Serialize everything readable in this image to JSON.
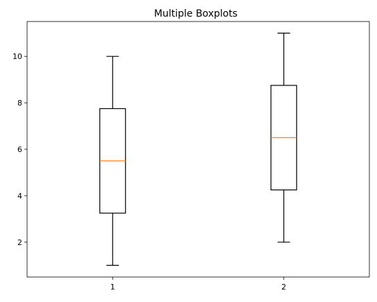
{
  "chart_data": {
    "type": "boxplot",
    "title": "Multiple Boxplots",
    "xlabel": "",
    "ylabel": "",
    "categories": [
      "1",
      "2"
    ],
    "boxes": [
      {
        "label": "1",
        "whisker_low": 1.0,
        "q1": 3.25,
        "median": 5.5,
        "q3": 7.75,
        "whisker_high": 10.0
      },
      {
        "label": "2",
        "whisker_low": 2.0,
        "q1": 4.25,
        "median": 6.5,
        "q3": 8.75,
        "whisker_high": 11.0
      }
    ],
    "ylim": [
      0.5,
      11.5
    ],
    "yticks": [
      2,
      4,
      6,
      8,
      10
    ],
    "grid": false,
    "box_color": "#000000",
    "median_color": "#ff7f0e"
  }
}
